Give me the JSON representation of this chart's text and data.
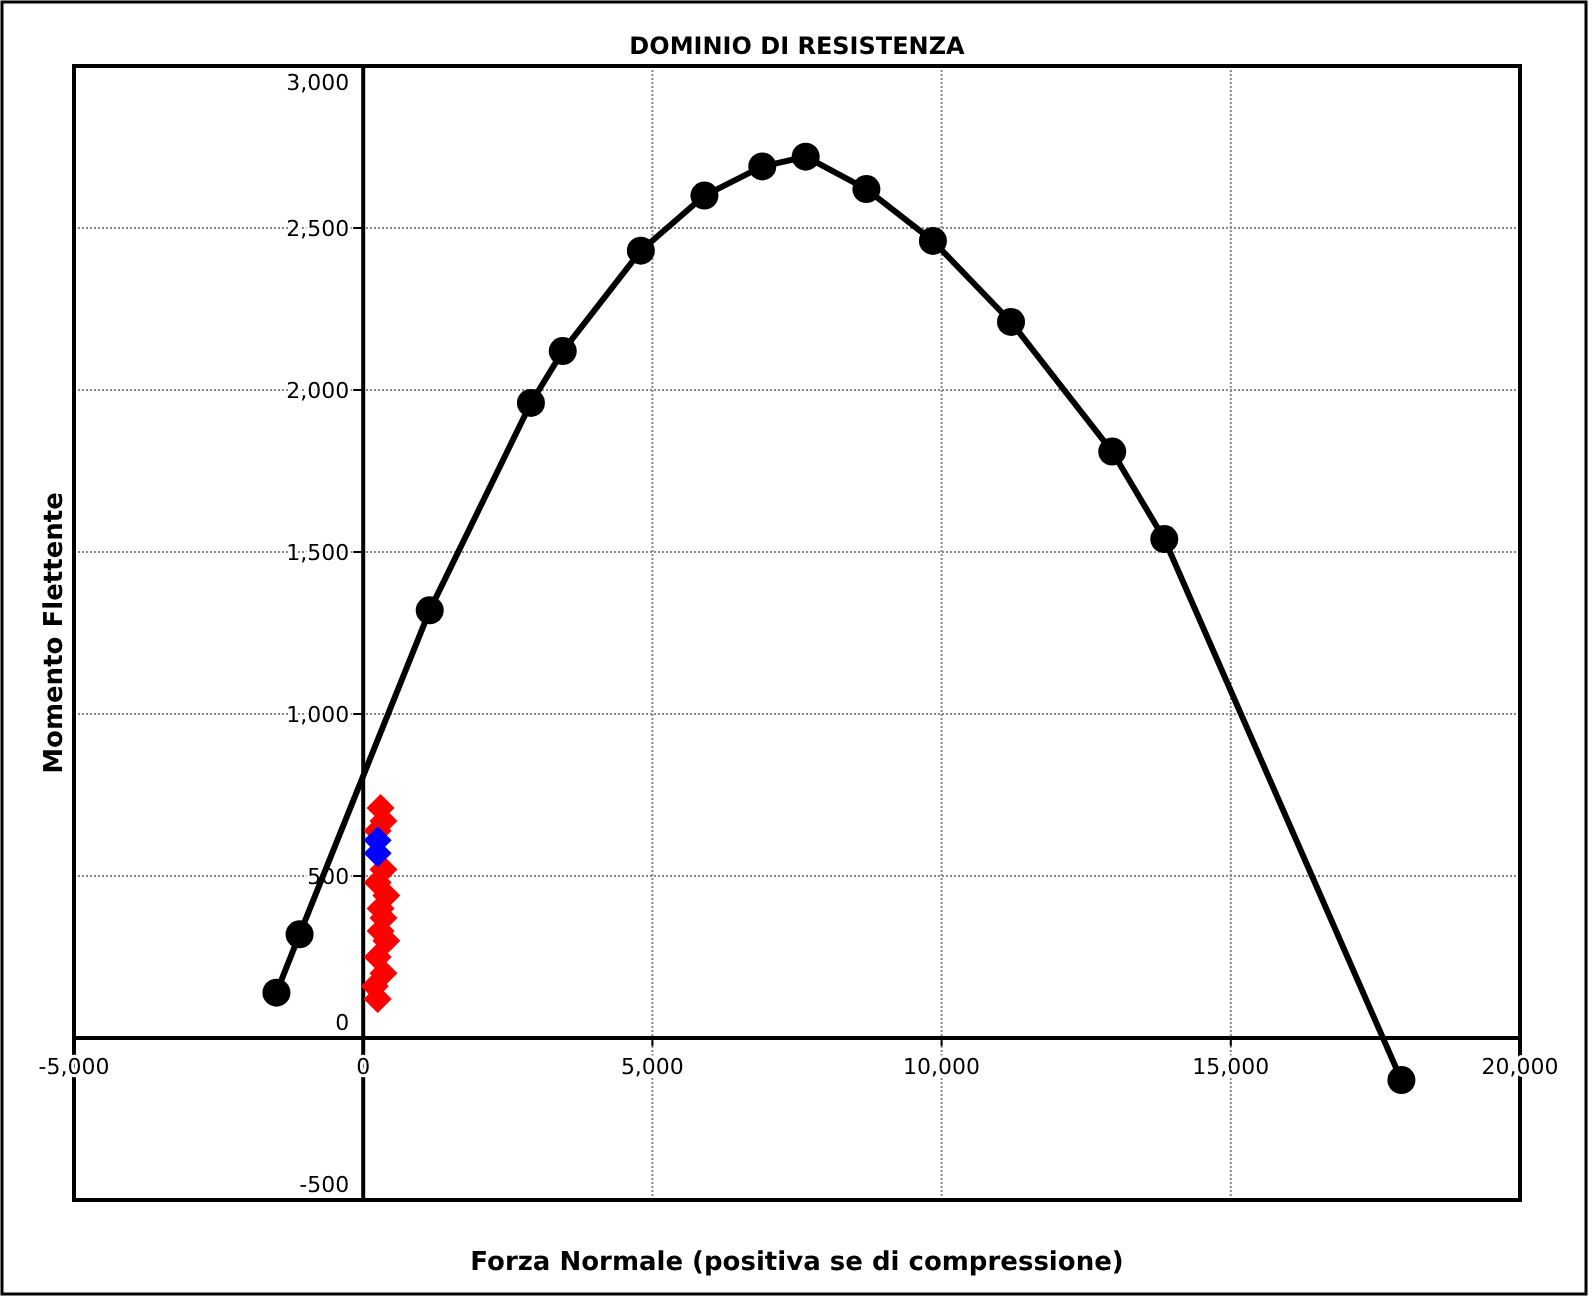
{
  "chart_data": {
    "type": "scatter",
    "title": "DOMINIO DI RESISTENZA",
    "xlabel": "Forza Normale (positiva se di compressione)",
    "ylabel": "Momento Flettente",
    "xlim": [
      -5000,
      20000
    ],
    "xticks": [
      {
        "value": -5000,
        "label": "-5,000"
      },
      0,
      {
        "value": 5000,
        "label": "5,000"
      },
      {
        "value": 10000,
        "label": "10,000"
      },
      {
        "value": 15000,
        "label": "15,000"
      },
      {
        "value": 20000,
        "label": "20,000"
      }
    ],
    "ylim": [
      -500,
      3000
    ],
    "yticks": [
      -500,
      0,
      500,
      {
        "value": 1000,
        "label": "1,000"
      },
      {
        "value": 1500,
        "label": "1,500"
      },
      {
        "value": 2000,
        "label": "2,000"
      },
      {
        "value": 2500,
        "label": "2,500"
      },
      {
        "value": 3000,
        "label": "3,000"
      }
    ],
    "grid": true,
    "series": [
      {
        "type": "line",
        "marker": "circle",
        "line_style": "solid",
        "color": "#000000",
        "x": [
          -1500,
          -1100,
          1150,
          2900,
          3450,
          4800,
          5900,
          6900,
          7650,
          8700,
          9850,
          11200,
          12950,
          13850,
          17950
        ],
        "values": [
          140,
          320,
          1320,
          1960,
          2120,
          2430,
          2600,
          2690,
          2720,
          2620,
          2460,
          2210,
          1810,
          1540,
          -130
        ]
      },
      {
        "type": "scatter",
        "marker": "diamond",
        "color": "#ff0000",
        "x": [
          300,
          350,
          250,
          350,
          250,
          400,
          300,
          350,
          300,
          400,
          250,
          350,
          200,
          250
        ],
        "values": [
          710,
          670,
          640,
          520,
          480,
          440,
          400,
          370,
          330,
          300,
          250,
          200,
          160,
          120
        ]
      },
      {
        "type": "scatter",
        "marker": "diamond",
        "color": "#0000ff",
        "x": [
          250,
          250
        ],
        "values": [
          610,
          570
        ]
      }
    ]
  }
}
